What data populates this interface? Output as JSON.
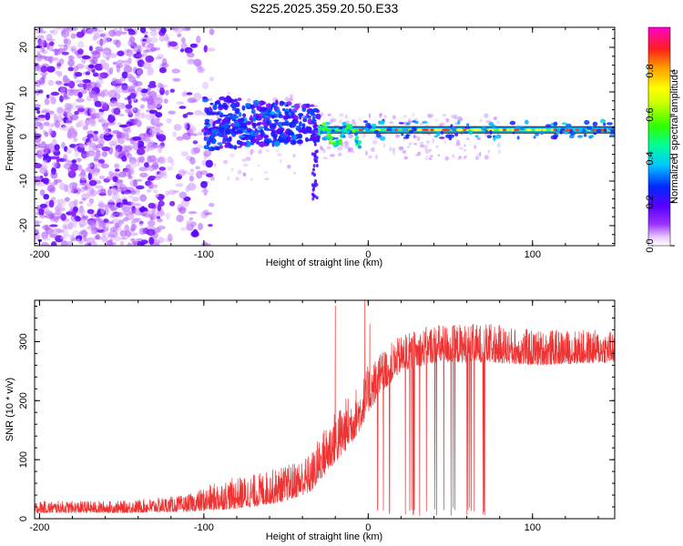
{
  "title": "S225.2025.359.20.50.E33",
  "colorbar": {
    "label": "Normalized spectral amplitude",
    "ticks": [
      "0.0",
      "0.2",
      "0.4",
      "0.6",
      "0.8"
    ],
    "tick_values": [
      0.0,
      0.2,
      0.4,
      0.6,
      0.8
    ],
    "range": [
      0,
      1
    ]
  },
  "chart_data": [
    {
      "type": "heatmap",
      "xlabel": "Height of straight line (km)",
      "ylabel": "Frequency (Hz)",
      "xlim": [
        -203,
        150
      ],
      "ylim": [
        -24.5,
        24.5
      ],
      "xticks": [
        -200,
        -100,
        0,
        100
      ],
      "xtick_labels": [
        "-200",
        "-100",
        "0",
        "100"
      ],
      "yticks": [
        -20,
        -10,
        0,
        10,
        20
      ],
      "ytick_labels": [
        "-20",
        "-10",
        "0",
        "10",
        "20"
      ],
      "description_points": {
        "carrier_line": {
          "x_start": -100,
          "x_end": 150,
          "frequency": 1.5
        },
        "noise_region": {
          "x_start": -203,
          "x_end": -110,
          "frequency_range": [
            -24.5,
            24.5
          ]
        },
        "transition_region": {
          "x_start": -100,
          "x_end": -30,
          "frequency_range": [
            -5,
            10
          ]
        }
      }
    },
    {
      "type": "line",
      "xlabel": "Height of straight line (km)",
      "ylabel": "SNR (10 * v/v)",
      "xlim": [
        -203,
        150
      ],
      "ylim": [
        0,
        370
      ],
      "xticks": [
        -200,
        -100,
        0,
        100
      ],
      "xtick_labels": [
        "-200",
        "-100",
        "0",
        "100"
      ],
      "yticks": [
        0,
        100,
        200,
        300
      ],
      "ytick_labels": [
        "0",
        "100",
        "200",
        "300"
      ],
      "series": [
        {
          "color": "#ee3333",
          "envelope": [
            {
              "x": -203,
              "base": 10,
              "peak": 30
            },
            {
              "x": -150,
              "base": 10,
              "peak": 30
            },
            {
              "x": -110,
              "base": 12,
              "peak": 40
            },
            {
              "x": -90,
              "base": 15,
              "peak": 65
            },
            {
              "x": -70,
              "base": 20,
              "peak": 75
            },
            {
              "x": -50,
              "base": 30,
              "peak": 90
            },
            {
              "x": -35,
              "base": 45,
              "peak": 110
            },
            {
              "x": -25,
              "base": 80,
              "peak": 165
            },
            {
              "x": -15,
              "base": 110,
              "peak": 200
            },
            {
              "x": -5,
              "base": 150,
              "peak": 230
            },
            {
              "x": 0,
              "base": 180,
              "peak": 260
            },
            {
              "x": 10,
              "base": 220,
              "peak": 290
            },
            {
              "x": 20,
              "base": 250,
              "peak": 310
            },
            {
              "x": 40,
              "base": 265,
              "peak": 330
            },
            {
              "x": 75,
              "base": 265,
              "peak": 330
            },
            {
              "x": 100,
              "base": 260,
              "peak": 320
            },
            {
              "x": 150,
              "base": 265,
              "peak": 320
            }
          ],
          "spikes": [
            {
              "x": -20,
              "y": 360
            },
            {
              "x": -2,
              "y": 370
            },
            {
              "x": 1,
              "y": 330
            }
          ],
          "dropout_range": [
            5,
            75
          ]
        }
      ]
    }
  ]
}
